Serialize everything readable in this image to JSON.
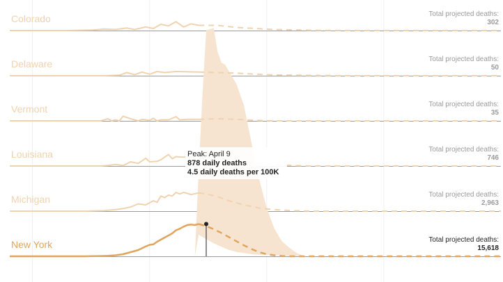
{
  "chart_data": {
    "type": "line",
    "title": "",
    "xlabel": "",
    "ylabel": "",
    "grid": true,
    "total_label": "Total projected deaths:",
    "colors": {
      "light": "#f0d3ae",
      "band": "#f6e4d1",
      "highlight": "#e0a55c",
      "baseline": "#9a9a9a",
      "total_light": "#9a9a9a",
      "total_dark": "#222222",
      "grid": "#f0f0f0"
    },
    "series": [
      {
        "name": "Colorado",
        "total": "302",
        "highlighted": false,
        "actual": [
          [
            0,
            0
          ],
          [
            15,
            0
          ],
          [
            22,
            1
          ],
          [
            25,
            3
          ],
          [
            28,
            2
          ],
          [
            31,
            5
          ],
          [
            33,
            2
          ],
          [
            36,
            7
          ],
          [
            38,
            4
          ],
          [
            40,
            12
          ],
          [
            42,
            9
          ],
          [
            44,
            17
          ],
          [
            46,
            7
          ],
          [
            48,
            13
          ],
          [
            50,
            10
          ]
        ],
        "projected": [
          [
            50,
            10
          ],
          [
            55,
            10
          ],
          [
            60,
            6
          ],
          [
            70,
            2
          ],
          [
            80,
            0.5
          ],
          [
            90,
            0
          ],
          [
            130,
            0
          ]
        ]
      },
      {
        "name": "Delaware",
        "total": "50",
        "highlighted": false,
        "actual": [
          [
            0,
            0
          ],
          [
            25,
            0
          ],
          [
            29,
            1
          ],
          [
            31,
            6
          ],
          [
            33,
            2
          ],
          [
            35,
            7
          ],
          [
            37,
            3
          ],
          [
            39,
            8
          ],
          [
            41,
            6
          ],
          [
            44,
            8
          ],
          [
            50,
            7
          ]
        ],
        "projected": [
          [
            50,
            7
          ],
          [
            55,
            6
          ],
          [
            60,
            5
          ],
          [
            65,
            3
          ],
          [
            70,
            1.5
          ],
          [
            80,
            0.5
          ],
          [
            90,
            0
          ],
          [
            130,
            0
          ]
        ]
      },
      {
        "name": "Vermont",
        "total": "35",
        "highlighted": false,
        "actual": [
          [
            0,
            0
          ],
          [
            24,
            0
          ],
          [
            26,
            4
          ],
          [
            27,
            0
          ],
          [
            28,
            2
          ],
          [
            29,
            0
          ],
          [
            30,
            9
          ],
          [
            32,
            4
          ],
          [
            34,
            0
          ],
          [
            35,
            3
          ],
          [
            37,
            1
          ],
          [
            38,
            5
          ],
          [
            39,
            0
          ],
          [
            40,
            2
          ],
          [
            42,
            2
          ],
          [
            44,
            8
          ],
          [
            45,
            2
          ],
          [
            47,
            3
          ],
          [
            50,
            3
          ]
        ],
        "projected": [
          [
            50,
            3
          ],
          [
            55,
            4
          ],
          [
            60,
            3
          ],
          [
            65,
            1
          ],
          [
            70,
            0
          ],
          [
            130,
            0
          ]
        ]
      },
      {
        "name": "Louisiana",
        "total": "746",
        "highlighted": false,
        "actual": [
          [
            0,
            0
          ],
          [
            24,
            0
          ],
          [
            26,
            1
          ],
          [
            28,
            3
          ],
          [
            30,
            1
          ],
          [
            32,
            8
          ],
          [
            34,
            5
          ],
          [
            36,
            15
          ],
          [
            37,
            8
          ],
          [
            39,
            9
          ],
          [
            40,
            12
          ],
          [
            41,
            17
          ],
          [
            42,
            22
          ],
          [
            43,
            14
          ],
          [
            44,
            18
          ],
          [
            46,
            17
          ],
          [
            48,
            19
          ],
          [
            50,
            18
          ]
        ],
        "projected": [
          [
            50,
            18
          ],
          [
            55,
            16
          ],
          [
            60,
            12
          ],
          [
            65,
            6
          ],
          [
            70,
            3
          ],
          [
            75,
            1
          ],
          [
            80,
            0
          ],
          [
            130,
            0
          ]
        ]
      },
      {
        "name": "Michigan",
        "total": "2,963",
        "highlighted": false,
        "actual": [
          [
            0,
            0
          ],
          [
            20,
            0
          ],
          [
            25,
            1
          ],
          [
            28,
            3
          ],
          [
            30,
            5
          ],
          [
            32,
            8
          ],
          [
            34,
            14
          ],
          [
            36,
            12
          ],
          [
            38,
            20
          ],
          [
            39,
            17
          ],
          [
            40,
            29
          ],
          [
            41,
            26
          ],
          [
            42,
            31
          ],
          [
            43,
            29
          ],
          [
            44,
            36
          ],
          [
            45,
            33
          ],
          [
            46,
            36
          ],
          [
            48,
            32
          ],
          [
            50,
            35
          ]
        ],
        "projected": [
          [
            50,
            35
          ],
          [
            52,
            33
          ],
          [
            55,
            28
          ],
          [
            58,
            20
          ],
          [
            62,
            12
          ],
          [
            66,
            6
          ],
          [
            70,
            3
          ],
          [
            75,
            1
          ],
          [
            80,
            0
          ],
          [
            130,
            0
          ]
        ]
      },
      {
        "name": "New York",
        "total": "15,618",
        "highlighted": true,
        "actual": [
          [
            0,
            0
          ],
          [
            20,
            0
          ],
          [
            24,
            0.5
          ],
          [
            26,
            1
          ],
          [
            28,
            2
          ],
          [
            30,
            4
          ],
          [
            32,
            8
          ],
          [
            34,
            12
          ],
          [
            36,
            19
          ],
          [
            37,
            22
          ],
          [
            38,
            23
          ],
          [
            39,
            28
          ],
          [
            40,
            32
          ],
          [
            42,
            40
          ],
          [
            43,
            44
          ],
          [
            44,
            50
          ],
          [
            45,
            53
          ],
          [
            46,
            57
          ],
          [
            47,
            60
          ],
          [
            48,
            61
          ],
          [
            49,
            60
          ],
          [
            50,
            62
          ]
        ],
        "projected": [
          [
            50,
            62
          ],
          [
            52,
            58
          ],
          [
            54,
            52
          ],
          [
            56,
            45
          ],
          [
            58,
            37
          ],
          [
            60,
            29
          ],
          [
            62,
            21
          ],
          [
            64,
            14
          ],
          [
            66,
            8
          ],
          [
            68,
            4
          ],
          [
            70,
            2
          ],
          [
            72,
            0.5
          ],
          [
            74,
            0
          ],
          [
            130,
            0
          ]
        ]
      }
    ],
    "band": {
      "upper": [
        [
          49,
          0
        ],
        [
          50,
          80
        ],
        [
          51,
          150
        ],
        [
          52,
          210
        ],
        [
          54,
          212
        ],
        [
          55,
          190
        ],
        [
          56,
          180
        ],
        [
          57,
          178
        ],
        [
          58,
          172
        ],
        [
          60,
          160
        ],
        [
          62,
          140
        ],
        [
          64,
          105
        ],
        [
          66,
          72
        ],
        [
          68,
          45
        ],
        [
          70,
          26
        ],
        [
          72,
          14
        ],
        [
          74,
          8
        ],
        [
          76,
          3
        ],
        [
          78,
          0
        ]
      ],
      "lower": [
        [
          49,
          0
        ],
        [
          50,
          20
        ],
        [
          52,
          16
        ],
        [
          54,
          12
        ],
        [
          56,
          9
        ],
        [
          58,
          6
        ],
        [
          60,
          4
        ],
        [
          62,
          3
        ],
        [
          64,
          2
        ],
        [
          66,
          1.5
        ],
        [
          70,
          1
        ],
        [
          74,
          0.5
        ],
        [
          78,
          0
        ]
      ]
    },
    "annotation": {
      "x": 52,
      "peak": "Peak: April 9",
      "daily": "878 daily deaths",
      "per_100k": "4.5 daily deaths per 100K"
    }
  }
}
